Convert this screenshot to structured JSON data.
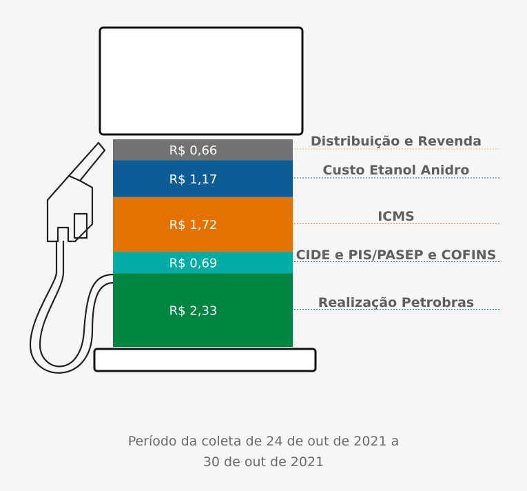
{
  "chart_data": {
    "type": "bar",
    "stacked": true,
    "unit_prefix": "R$",
    "segments": [
      {
        "category": "Distribuição e Revenda",
        "label": "R$ 0,66",
        "value": 0.66,
        "color": "#707273",
        "line_color": "#e3c447"
      },
      {
        "category": "Custo Etanol Anidro",
        "label": "R$ 1,17",
        "value": 1.17,
        "color": "#0c5c96",
        "line_color": "#1f6b9e"
      },
      {
        "category": "ICMS",
        "label": "R$ 1,72",
        "value": 1.72,
        "color": "#e47200",
        "line_color": "#e47200"
      },
      {
        "category": "CIDE e PIS/PASEP e COFINS",
        "label": "R$ 0,69",
        "value": 0.69,
        "color": "#00ada5",
        "line_color": "#1f6b9e"
      },
      {
        "category": "Realização Petrobras",
        "label": "R$ 2,33",
        "value": 2.33,
        "color": "#008641",
        "line_color": "#1f6b9e"
      }
    ]
  },
  "footer": {
    "line1": "Período da coleta de 24 de out de 2021 a",
    "line2": "30 de out de 2021"
  },
  "colors": {
    "background": "#f6f6f6",
    "outline": "#111111",
    "category_text": "#5f5f5f",
    "value_text": "#ffffff"
  },
  "icons": [
    "fuel-pump-icon",
    "fuel-nozzle-icon"
  ]
}
